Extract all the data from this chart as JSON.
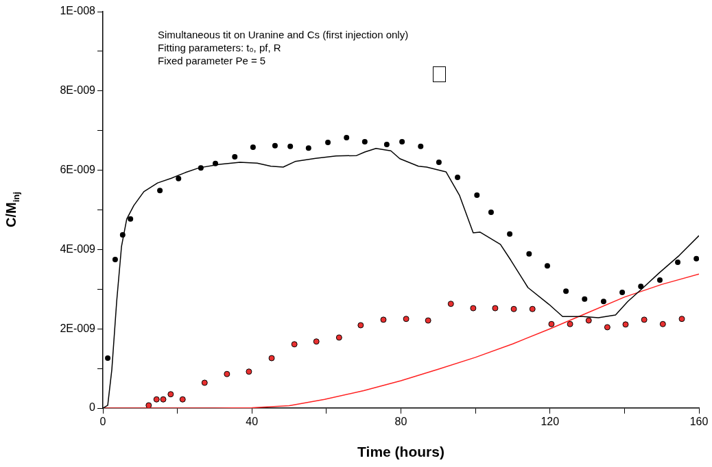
{
  "chart_data": {
    "type": "scatter",
    "xlabel": "Time (hours)",
    "ylabel": "C/M$_{inj}$",
    "annotations": [
      "Simultaneous tit on Uranine and Cs (first injection only)",
      "Fitting parameters: t₀, pf, R",
      "Fixed parameter Pe = 5"
    ],
    "xlim": [
      0,
      160
    ],
    "xticks": [
      0,
      {
        "value": 20,
        "label": null
      },
      40,
      {
        "value": 60,
        "label": null
      },
      80,
      {
        "value": 100,
        "label": null
      },
      120,
      {
        "value": 140,
        "label": null
      },
      160
    ],
    "ylim": [
      0,
      1e-08
    ],
    "yticks": [
      {
        "value": 0,
        "label": "0"
      },
      {
        "value": 1e-09,
        "label": null
      },
      {
        "value": 2e-09,
        "label": "2E-009"
      },
      {
        "value": 3e-09,
        "label": null
      },
      {
        "value": 4e-09,
        "label": "4E-009"
      },
      {
        "value": 5e-09,
        "label": null
      },
      {
        "value": 6e-09,
        "label": "6E-009"
      },
      {
        "value": 7e-09,
        "label": null
      },
      {
        "value": 8e-09,
        "label": "8E-009"
      },
      {
        "value": 9e-09,
        "label": null
      },
      {
        "value": 1e-08,
        "label": "1E-008"
      }
    ],
    "grid": false,
    "legend": false,
    "series": [
      {
        "type": "line",
        "color": "#000000",
        "marker": "none",
        "line_style": "solid",
        "x": [
          0,
          1.3,
          2.4,
          3.7,
          5,
          6.4,
          8.3,
          11,
          14.7,
          18.4,
          22.1,
          25.8,
          31.3,
          36.8,
          41.4,
          45.1,
          48.4,
          51.6,
          57.1,
          62.6,
          68.1,
          70.3,
          73.3,
          77.3,
          79.7,
          84.7,
          86.9,
          92.1,
          95.7,
          99.4,
          101.2,
          106.7,
          109.5,
          114.1,
          119.7,
          123.4,
          128.9,
          133,
          137.6,
          140.9,
          144.6,
          149.2,
          154.7,
          160
        ],
        "values": [
          0,
          7e-11,
          9.7e-10,
          2.69e-09,
          4.08e-09,
          4.77e-09,
          5.11e-09,
          5.46e-09,
          5.68e-09,
          5.8e-09,
          5.94e-09,
          6.06e-09,
          6.15e-09,
          6.2e-09,
          6.18e-09,
          6.1e-09,
          6.08e-09,
          6.22e-09,
          6.3e-09,
          6.36e-09,
          6.37e-09,
          6.46e-09,
          6.55e-09,
          6.49e-09,
          6.29e-09,
          6.1e-09,
          6.08e-09,
          5.96e-09,
          5.37e-09,
          4.42e-09,
          4.44e-09,
          4.13e-09,
          3.73e-09,
          3.04e-09,
          2.62e-09,
          2.31e-09,
          2.31e-09,
          2.28e-09,
          2.35e-09,
          2.69e-09,
          3e-09,
          3.4e-09,
          3.85e-09,
          4.35e-09
        ]
      },
      {
        "type": "line",
        "color": "#ff2020",
        "marker": "none",
        "line_style": "solid",
        "x": [
          0,
          30,
          40,
          50,
          59.5,
          70,
          80,
          90,
          100,
          110,
          120,
          130,
          140,
          150,
          160
        ],
        "values": [
          0,
          0,
          1e-11,
          6e-11,
          2.2e-10,
          4.4e-10,
          6.9e-10,
          9.8e-10,
          1.28e-09,
          1.62e-09,
          2e-09,
          2.4e-09,
          2.8e-09,
          3.12e-09,
          3.38e-09
        ]
      },
      {
        "type": "scatter",
        "color": "#000000",
        "marker": "circle",
        "x": [
          1.3,
          3.3,
          5.3,
          7.4,
          15.3,
          20.3,
          26.3,
          30.2,
          35.4,
          40.3,
          46.2,
          50.3,
          55.2,
          60.4,
          65.4,
          70.3,
          76.2,
          80.3,
          85.3,
          90.2,
          95.2,
          100.4,
          104.2,
          109.2,
          114.4,
          119.3,
          124.3,
          129.3,
          134.4,
          139.4,
          144.4,
          149.5,
          154.3,
          159.3
        ],
        "values": [
          1.26e-09,
          3.75e-09,
          4.37e-09,
          4.77e-09,
          5.49e-09,
          5.79e-09,
          6.06e-09,
          6.17e-09,
          6.34e-09,
          6.58e-09,
          6.62e-09,
          6.6e-09,
          6.56e-09,
          6.7e-09,
          6.82e-09,
          6.72e-09,
          6.65e-09,
          6.72e-09,
          6.6e-09,
          6.2e-09,
          5.82e-09,
          5.37e-09,
          4.94e-09,
          4.39e-09,
          3.89e-09,
          3.59e-09,
          2.95e-09,
          2.75e-09,
          2.69e-09,
          2.92e-09,
          3.07e-09,
          3.23e-09,
          3.68e-09,
          3.77e-09
        ]
      },
      {
        "type": "scatter",
        "color": "#e83030",
        "marker": "circle",
        "x": [
          12.3,
          14.4,
          16.2,
          18.2,
          21.4,
          27.3,
          33.3,
          39.2,
          45.3,
          51.4,
          57.3,
          63.4,
          69.2,
          75.3,
          81.4,
          87.3,
          93.4,
          99.4,
          105.3,
          110.3,
          115.3,
          120.4,
          125.4,
          130.4,
          135.4,
          140.3,
          145.3,
          150.3,
          155.4
        ],
        "values": [
          7e-11,
          2.2e-10,
          2.2e-10,
          3.5e-10,
          2.2e-10,
          6.4e-10,
          8.6e-10,
          9.2e-10,
          1.26e-09,
          1.61e-09,
          1.68e-09,
          1.78e-09,
          2.09e-09,
          2.23e-09,
          2.25e-09,
          2.21e-09,
          2.63e-09,
          2.52e-09,
          2.52e-09,
          2.5e-09,
          2.5e-09,
          2.12e-09,
          2.12e-09,
          2.21e-09,
          2.04e-09,
          2.11e-09,
          2.23e-09,
          2.12e-09,
          2.25e-09
        ]
      }
    ]
  }
}
